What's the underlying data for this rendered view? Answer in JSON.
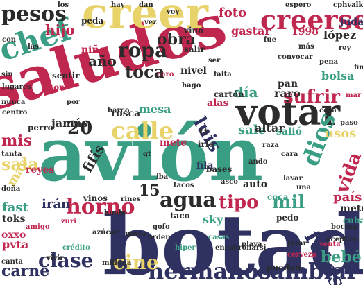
{
  "palette": {
    "crimson": "#c0274f",
    "navy": "#2f3160",
    "green": "#3a9e84",
    "sand": "#e8d36a",
    "charcoal": "#2b2b2b",
    "background": "#ffffff"
  },
  "words": [
    {
      "text": "botado",
      "color": "navy"
    },
    {
      "text": "avión",
      "color": "green"
    },
    {
      "text": "saludos",
      "color": "crimson"
    },
    {
      "text": "votar",
      "color": "charcoal"
    },
    {
      "text": "creer",
      "color": "sand"
    },
    {
      "text": "creerse",
      "color": "crimson"
    },
    {
      "text": "chef",
      "color": "green"
    },
    {
      "text": "pesos",
      "color": "charcoal"
    },
    {
      "text": "hermanos",
      "color": "navy"
    },
    {
      "text": "cambiar",
      "color": "navy"
    },
    {
      "text": "horno",
      "color": "crimson"
    },
    {
      "text": "agua",
      "color": "charcoal"
    },
    {
      "text": "calle",
      "color": "sand"
    },
    {
      "text": "clase",
      "color": "navy"
    },
    {
      "text": "carne",
      "color": "navy"
    },
    {
      "text": "cine",
      "color": "sand"
    },
    {
      "text": "fotos",
      "color": "navy"
    },
    {
      "text": "dios",
      "color": "green"
    },
    {
      "text": "vida",
      "color": "crimson"
    },
    {
      "text": "sufrir",
      "color": "crimson"
    },
    {
      "text": "luis",
      "color": "navy"
    },
    {
      "text": "ropa",
      "color": "charcoal"
    },
    {
      "text": "toca",
      "color": "charcoal"
    },
    {
      "text": "obra",
      "color": "charcoal"
    },
    {
      "text": "mil",
      "color": "green"
    },
    {
      "text": "tipo",
      "color": "crimson"
    },
    {
      "text": "sala",
      "color": "sand"
    },
    {
      "text": "mis",
      "color": "crimson"
    },
    {
      "text": "bebé",
      "color": "green"
    },
    {
      "text": "día",
      "color": "green"
    },
    {
      "text": "20",
      "color": "charcoal"
    },
    {
      "text": "hijo",
      "color": "crimson"
    },
    {
      "text": "año",
      "color": "charcoal"
    },
    {
      "text": "fifís",
      "color": "charcoal"
    },
    {
      "text": "15",
      "color": "charcoal"
    },
    {
      "text": "foto",
      "color": "crimson"
    },
    {
      "text": "gastar",
      "color": "crimson"
    },
    {
      "text": "irán",
      "color": "navy"
    },
    {
      "text": "país",
      "color": "crimson"
    },
    {
      "text": "sale",
      "color": "green"
    },
    {
      "text": "fast",
      "color": "green"
    },
    {
      "text": "mas",
      "color": "sand"
    },
    {
      "text": "usos",
      "color": "sand"
    },
    {
      "text": "judas",
      "color": "navy"
    },
    {
      "text": "lópez",
      "color": "charcoal"
    },
    {
      "text": "1998",
      "color": "crimson"
    },
    {
      "text": "jamás",
      "color": "charcoal"
    },
    {
      "text": "mesa",
      "color": "green"
    },
    {
      "text": "rosca",
      "color": "charcoal"
    },
    {
      "text": "altar",
      "color": "charcoal"
    },
    {
      "text": "salió",
      "color": "green"
    },
    {
      "text": "reyes",
      "color": "crimson"
    },
    {
      "text": "niño",
      "color": "crimson"
    },
    {
      "text": "pan",
      "color": "charcoal"
    },
    {
      "text": "raro",
      "color": "charcoal"
    },
    {
      "text": "toks",
      "color": "charcoal"
    },
    {
      "text": "bolsa",
      "color": "green"
    },
    {
      "text": "alas",
      "color": "crimson"
    },
    {
      "text": "nivel",
      "color": "charcoal"
    },
    {
      "text": "pvta",
      "color": "crimson"
    },
    {
      "text": "metro",
      "color": "charcoal"
    },
    {
      "text": "sky",
      "color": "green"
    },
    {
      "text": "coca",
      "color": "green"
    },
    {
      "text": "auto",
      "color": "charcoal"
    },
    {
      "text": "fila",
      "color": "navy"
    },
    {
      "text": "crédito",
      "color": "green"
    },
    {
      "text": "puedan",
      "color": "charcoal"
    },
    {
      "text": "cuba",
      "color": "green"
    },
    {
      "text": "taco",
      "color": "charcoal"
    },
    {
      "text": "tt",
      "color": "charcoal"
    },
    {
      "text": "mete",
      "color": "crimson"
    },
    {
      "text": "falta",
      "color": "charcoal"
    },
    {
      "text": "cphvalkkhh",
      "color": "charcoal"
    },
    {
      "text": "espero",
      "color": "charcoal"
    },
    {
      "text": "convocar",
      "color": "charcoal"
    },
    {
      "text": "salir",
      "color": "charcoal"
    },
    {
      "text": "vino",
      "color": "charcoal"
    },
    {
      "text": "peda",
      "color": "charcoal"
    },
    {
      "text": "centro",
      "color": "charcoal"
    },
    {
      "text": "perro",
      "color": "charcoal"
    },
    {
      "text": "lugares",
      "color": "charcoal"
    },
    {
      "text": "vitor",
      "color": "crimson"
    },
    {
      "text": "sentir",
      "color": "charcoal"
    },
    {
      "text": "barco",
      "color": "charcoal"
    },
    {
      "text": "cartón",
      "color": "charcoal"
    },
    {
      "text": "casas",
      "color": "green"
    },
    {
      "text": "playa",
      "color": "charcoal"
    },
    {
      "text": "jurar",
      "color": "charcoal"
    },
    {
      "text": "venta",
      "color": "crimson"
    },
    {
      "text": "pedo",
      "color": "charcoal"
    },
    {
      "text": "bocina",
      "color": "charcoal"
    },
    {
      "text": "cerveza",
      "color": "crimson"
    },
    {
      "text": "aceptan",
      "color": "charcoal"
    },
    {
      "text": "encabronarsi",
      "color": "charcoal"
    },
    {
      "text": "orden",
      "color": "charcoal"
    },
    {
      "text": "novia",
      "color": "charcoal"
    },
    {
      "text": "millona",
      "color": "charcoal"
    },
    {
      "text": "hiper",
      "color": "green"
    },
    {
      "text": "vinos",
      "color": "charcoal"
    },
    {
      "text": "huele",
      "color": "charcoal"
    },
    {
      "text": "bases",
      "color": "charcoal"
    },
    {
      "text": "irle",
      "color": "charcoal"
    },
    {
      "text": "asco",
      "color": "charcoal"
    },
    {
      "text": "lavar",
      "color": "charcoal"
    },
    {
      "text": "raza",
      "color": "charcoal"
    },
    {
      "text": "cara",
      "color": "charcoal"
    },
    {
      "text": "amigo",
      "color": "crimson"
    },
    {
      "text": "doña",
      "color": "charcoal"
    },
    {
      "text": "tanta",
      "color": "charcoal"
    },
    {
      "text": "gofo",
      "color": "charcoal"
    },
    {
      "text": "tacos",
      "color": "charcoal"
    },
    {
      "text": "zuri",
      "color": "crimson"
    },
    {
      "text": "azúcar",
      "color": "charcoal"
    },
    {
      "text": "canta",
      "color": "charcoal"
    },
    {
      "text": "oxxo",
      "color": "crimson"
    },
    {
      "text": "vivir",
      "color": "charcoal"
    },
    {
      "text": "nunca",
      "color": "charcoal"
    },
    {
      "text": "hago",
      "color": "charcoal"
    },
    {
      "text": "ando",
      "color": "charcoal"
    },
    {
      "text": "rines",
      "color": "charcoal"
    },
    {
      "text": "iba",
      "color": "charcoal"
    },
    {
      "text": "gt",
      "color": "charcoal"
    },
    {
      "text": "mar",
      "color": "crimson"
    },
    {
      "text": "caro",
      "color": "crimson"
    },
    {
      "text": "cosa",
      "color": "charcoal"
    },
    {
      "text": "paso",
      "color": "charcoal"
    },
    {
      "text": "pena",
      "color": "charcoal"
    },
    {
      "text": "rey",
      "color": "charcoal"
    },
    {
      "text": "fin",
      "color": "charcoal"
    },
    {
      "text": "más",
      "color": "charcoal"
    },
    {
      "text": "fue",
      "color": "charcoal"
    },
    {
      "text": "ser",
      "color": "charcoal"
    },
    {
      "text": "vez",
      "color": "charcoal"
    },
    {
      "text": "dan",
      "color": "charcoal"
    },
    {
      "text": "voy",
      "color": "charcoal"
    },
    {
      "text": "hay",
      "color": "charcoal"
    },
    {
      "text": "los",
      "color": "charcoal"
    },
    {
      "text": "las",
      "color": "charcoal"
    },
    {
      "text": "sin",
      "color": "charcoal"
    },
    {
      "text": "con",
      "color": "charcoal"
    },
    {
      "text": "por",
      "color": "charcoal"
    },
    {
      "text": "una",
      "color": "charcoal"
    }
  ]
}
